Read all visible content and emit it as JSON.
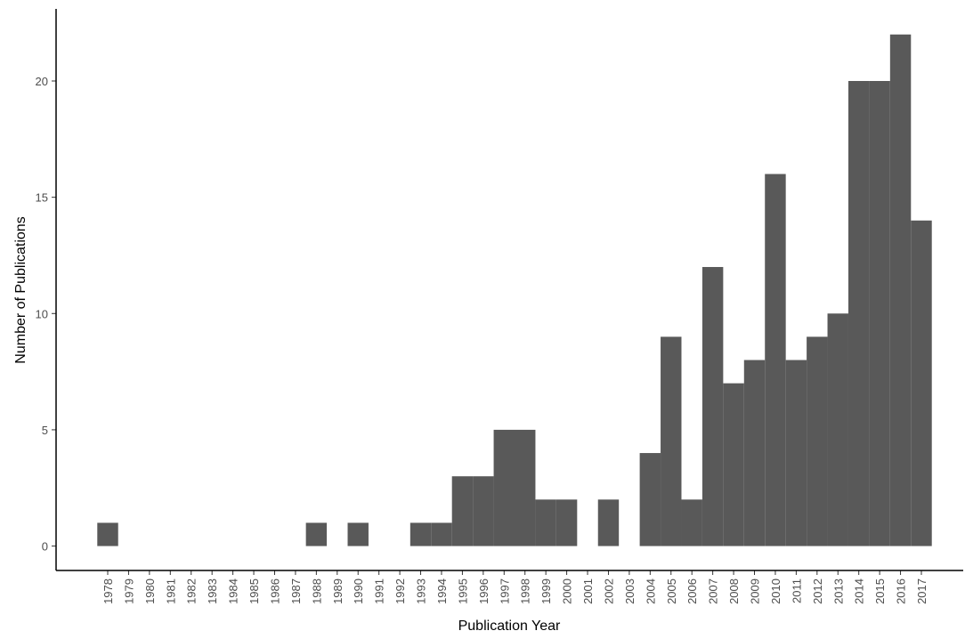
{
  "chart_data": {
    "type": "bar",
    "x_label": "Publication Year",
    "y_label": "Number of Publications",
    "categories": [
      "1978",
      "1979",
      "1980",
      "1981",
      "1982",
      "1983",
      "1984",
      "1985",
      "1986",
      "1987",
      "1988",
      "1989",
      "1990",
      "1991",
      "1992",
      "1993",
      "1994",
      "1995",
      "1996",
      "1997",
      "1998",
      "1999",
      "2000",
      "2001",
      "2002",
      "2003",
      "2004",
      "2005",
      "2006",
      "2007",
      "2008",
      "2009",
      "2010",
      "2011",
      "2012",
      "2013",
      "2014",
      "2015",
      "2016",
      "2017"
    ],
    "values": [
      1,
      0,
      0,
      0,
      0,
      0,
      0,
      0,
      0,
      0,
      1,
      0,
      1,
      0,
      0,
      1,
      1,
      3,
      3,
      5,
      5,
      2,
      2,
      0,
      2,
      0,
      4,
      9,
      2,
      12,
      7,
      8,
      16,
      8,
      9,
      10,
      20,
      20,
      22,
      14
    ],
    "color": "#595959",
    "ylim": [
      -1.05,
      23.1
    ],
    "yticks": [
      0,
      5,
      10,
      15,
      20
    ]
  }
}
